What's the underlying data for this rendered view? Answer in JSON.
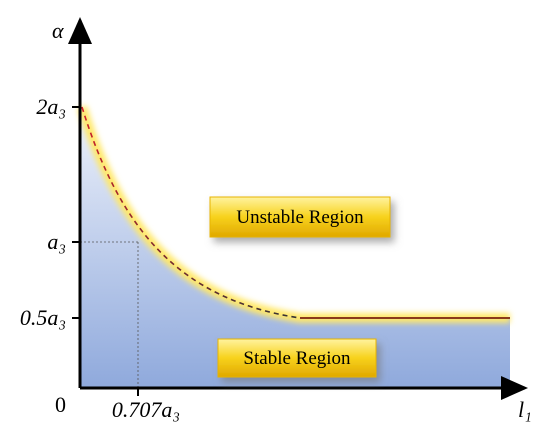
{
  "axes": {
    "y_label": "α",
    "x_label": "l₁",
    "origin": "0"
  },
  "y_ticks": [
    "2a₃",
    "a₃",
    "0.5a₃"
  ],
  "x_ticks": [
    "0.707a₃"
  ],
  "regions": {
    "unstable": "Unstable Region",
    "stable": "Stable Region"
  }
}
